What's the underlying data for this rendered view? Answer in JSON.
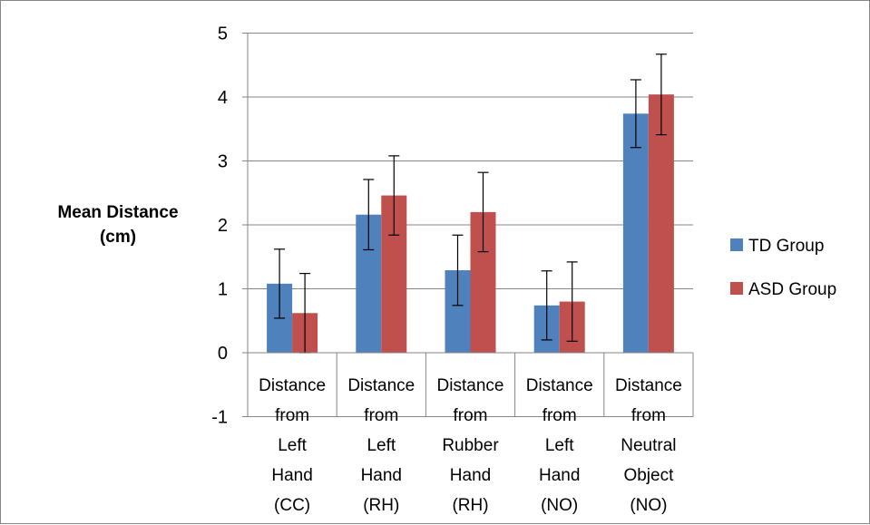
{
  "chart_data": {
    "type": "bar",
    "ylabel": [
      "Mean Distance",
      "(cm)"
    ],
    "ylim": [
      -1,
      5
    ],
    "y_ticks": [
      "-1",
      "0",
      "1",
      "2",
      "3",
      "4",
      "5"
    ],
    "grid": "horizontal",
    "legend_position": "right",
    "categories": [
      [
        "Distance",
        "from",
        "Left",
        "Hand",
        "(CC)"
      ],
      [
        "Distance",
        "from",
        "Left",
        "Hand",
        "(RH)"
      ],
      [
        "Distance",
        "from",
        "Rubber",
        "Hand",
        "(RH)"
      ],
      [
        "Distance",
        "from",
        "Left",
        "Hand",
        "(NO)"
      ],
      [
        "Distance",
        "from",
        "Neutral",
        "Object",
        "(NO)"
      ]
    ],
    "series": [
      {
        "name": "TD Group",
        "color": "#4f81bd",
        "values": [
          1.08,
          2.16,
          1.29,
          0.74,
          3.74
        ],
        "error": [
          0.54,
          0.55,
          0.55,
          0.54,
          0.53
        ]
      },
      {
        "name": "ASD Group",
        "color": "#c0504d",
        "values": [
          0.62,
          2.46,
          2.2,
          0.8,
          4.04
        ],
        "error": [
          0.62,
          0.62,
          0.62,
          0.62,
          0.63
        ]
      }
    ]
  }
}
